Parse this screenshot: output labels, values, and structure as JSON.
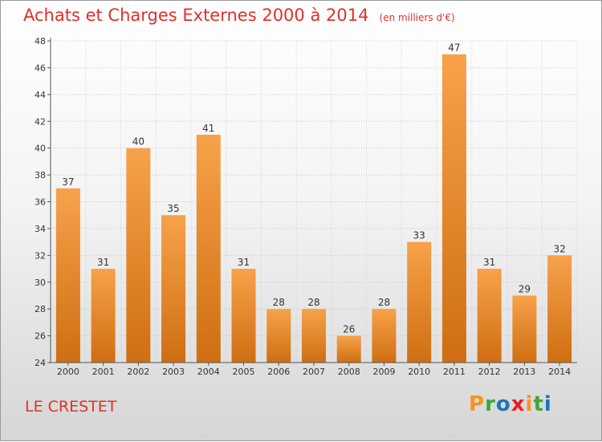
{
  "header": {
    "title": "Achats et Charges Externes 2000 à 2014",
    "subtitle": "(en milliers d'€)"
  },
  "commune": "LE CRESTET",
  "logo": {
    "text": "Proxiti",
    "letters": [
      {
        "char": "P",
        "color": "#f7941d"
      },
      {
        "char": "r",
        "color": "#39a935"
      },
      {
        "char": "o",
        "color": "#1b75bc"
      },
      {
        "char": "x",
        "color": "#ed1c24"
      },
      {
        "char": "i",
        "color": "#f7941d"
      },
      {
        "char": "t",
        "color": "#39a935"
      },
      {
        "char": "i",
        "color": "#1b75bc"
      }
    ]
  },
  "chart_data": {
    "type": "bar",
    "title": "Achats et Charges Externes 2000 à 2014",
    "subtitle": "(en milliers d'€)",
    "categories": [
      "2000",
      "2001",
      "2002",
      "2003",
      "2004",
      "2005",
      "2006",
      "2007",
      "2008",
      "2009",
      "2010",
      "2011",
      "2012",
      "2013",
      "2014"
    ],
    "values": [
      37,
      31,
      40,
      35,
      41,
      31,
      28,
      28,
      26,
      28,
      33,
      47,
      31,
      29,
      32
    ],
    "ylim": [
      24,
      48
    ],
    "yticks": [
      24,
      26,
      28,
      30,
      32,
      34,
      36,
      38,
      40,
      42,
      44,
      46,
      48
    ],
    "xlabel": "",
    "ylabel": "",
    "grid": true,
    "legend": "none",
    "bar_color_top": "#f7a24a",
    "bar_color_bottom": "#cf6e12"
  }
}
